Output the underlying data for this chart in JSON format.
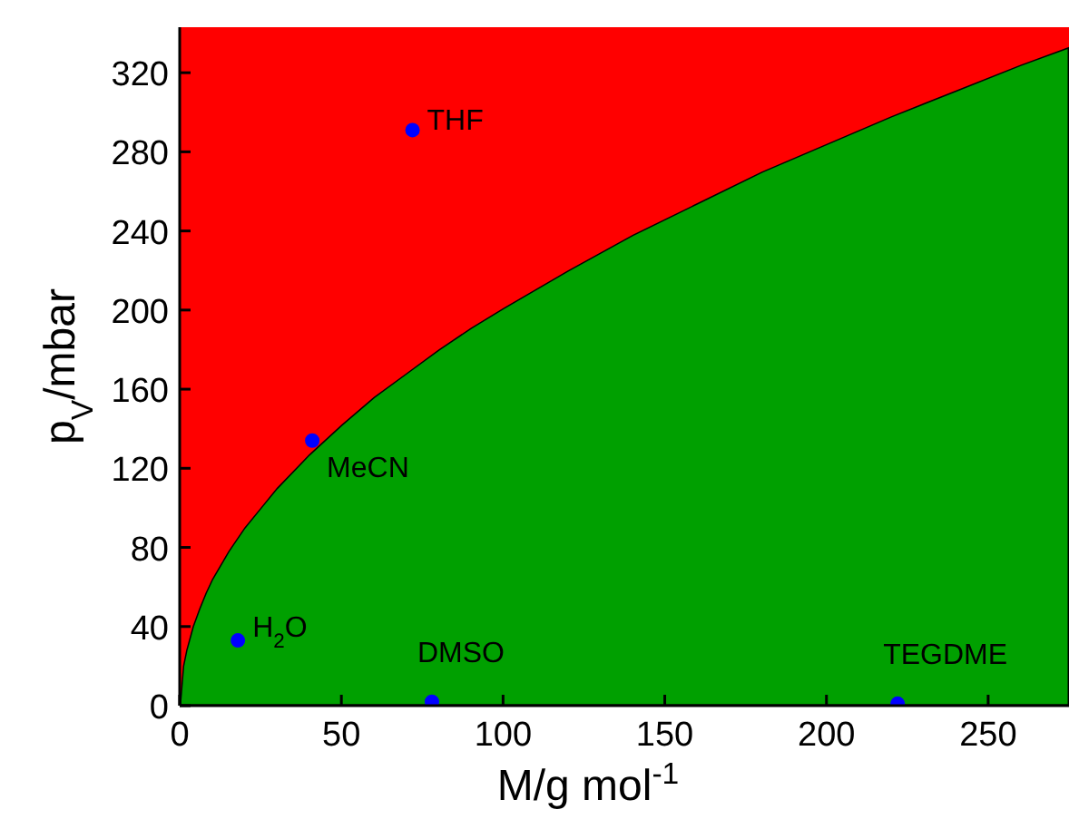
{
  "chart_data": {
    "type": "area",
    "stacked": true,
    "xlabel": "M/g mol$^{-1}$",
    "ylabel": "p$_{V}$/mbar",
    "xlim": [
      0,
      275
    ],
    "ylim": [
      0,
      343
    ],
    "xticks": [
      0,
      50,
      100,
      150,
      200,
      250
    ],
    "yticks": [
      0,
      40,
      80,
      120,
      160,
      200,
      240,
      280,
      320
    ],
    "grid": false,
    "x": [
      0,
      1,
      2,
      4,
      6,
      8,
      10,
      15,
      20,
      25,
      30,
      40,
      50,
      60,
      70,
      80,
      90,
      100,
      120,
      140,
      160,
      180,
      200,
      220,
      240,
      260,
      275
    ],
    "series": [
      {
        "color": "#00a000",
        "values": [
          0,
          20,
          28,
          40,
          49,
          57,
          64,
          78,
          90,
          100,
          110,
          127,
          142,
          156,
          168,
          180,
          191,
          201,
          220,
          238,
          254,
          270,
          284,
          298,
          311,
          324,
          333
        ]
      },
      {
        "color": "#ff0000",
        "values": [
          343,
          323,
          315,
          303,
          294,
          286,
          279,
          265,
          253,
          243,
          233,
          216,
          201,
          187,
          175,
          163,
          152,
          142,
          123,
          105,
          89,
          73,
          59,
          45,
          32,
          19,
          10
        ]
      },
      {
        "type": "scatter",
        "color": "#0000ff",
        "marker": "circle",
        "x": [
          18,
          41,
          72,
          78,
          222
        ],
        "values": [
          33,
          134,
          291,
          2,
          1
        ]
      }
    ],
    "annotations": [
      {
        "text": "H$_{2}$O",
        "x": 18,
        "y": 33
      },
      {
        "text": "MeCN",
        "x": 41,
        "y": 134
      },
      {
        "text": "THF",
        "x": 72,
        "y": 291
      },
      {
        "text": "DMSO",
        "x": 78,
        "y": 2
      },
      {
        "text": "TEGDME",
        "x": 222,
        "y": 1
      }
    ]
  }
}
